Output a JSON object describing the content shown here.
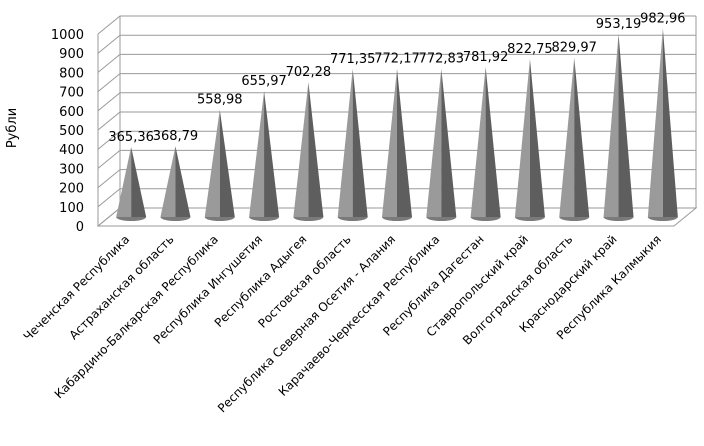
{
  "chart_data": {
    "type": "bar",
    "style": "3d-cone",
    "title": "",
    "xlabel": "",
    "ylabel": "Рубли",
    "ylim": [
      0,
      1000
    ],
    "ytick_step": 100,
    "yticks": [
      "0",
      "100",
      "200",
      "300",
      "400",
      "500",
      "600",
      "700",
      "800",
      "900",
      "1000"
    ],
    "grid": true,
    "legend": "none",
    "bar_color": "#8c8c8c",
    "categories": [
      "Чеченская Республика",
      "Астраханская область",
      "Кабардино-Балкарская Республика",
      "Республика Ингушетия",
      "Республика Адыгея",
      "Ростовская область",
      "Республика Северная Осетия - Алания",
      "Карачаево-Черкесская Республика",
      "Республика Дагестан",
      "Ставропольский край",
      "Волгоградская область",
      "Краснодарский край",
      "Республика Калмыкия"
    ],
    "values": [
      365.36,
      368.79,
      558.98,
      655.97,
      702.28,
      771.35,
      772.17,
      772.83,
      781.92,
      822.75,
      829.97,
      953.19,
      982.96
    ],
    "data_labels": [
      "365,36",
      "368,79",
      "558,98",
      "655,97",
      "702,28",
      "771,35",
      "772,17",
      "772,83",
      "781,92",
      "822,75",
      "829,97",
      "953,19",
      "982,96"
    ]
  }
}
